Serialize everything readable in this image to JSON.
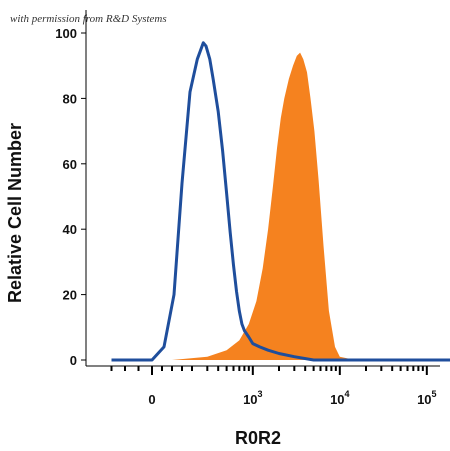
{
  "credit": "with permission from R&D Systems",
  "chart_data": {
    "type": "area",
    "title": "",
    "xlabel": "R0R2",
    "ylabel": "Relative Cell Number",
    "x_scale": "biexponential",
    "xlim": [
      -150,
      200000
    ],
    "ylim": [
      0,
      100
    ],
    "yticks": [
      "0",
      "20",
      "40",
      "60",
      "80",
      "100"
    ],
    "xticks": [
      {
        "value": 0,
        "base": "0",
        "exp": ""
      },
      {
        "value": 1000,
        "base": "10",
        "exp": "3"
      },
      {
        "value": 10000,
        "base": "10",
        "exp": "4"
      },
      {
        "value": 100000,
        "base": "10",
        "exp": "5"
      }
    ],
    "series": [
      {
        "style": "filled",
        "color": "#F5821F",
        "x": [
          -150,
          100,
          300,
          500,
          700,
          900,
          1100,
          1300,
          1500,
          1700,
          1900,
          2100,
          2300,
          2600,
          2900,
          3200,
          3500,
          3800,
          4200,
          4600,
          5100,
          5700,
          6500,
          7500,
          8800,
          10000,
          15000,
          200000
        ],
        "y": [
          0,
          0,
          1,
          3,
          6,
          11,
          18,
          28,
          40,
          53,
          65,
          74,
          80,
          86,
          90,
          93,
          94,
          92,
          88,
          80,
          70,
          55,
          35,
          15,
          4,
          1,
          0,
          0
        ]
      },
      {
        "style": "line",
        "color": "#1F4E9C",
        "x": [
          -150,
          0,
          60,
          110,
          150,
          190,
          230,
          270,
          290,
          320,
          350,
          400,
          450,
          500,
          550,
          600,
          650,
          700,
          750,
          800,
          900,
          1000,
          1200,
          1500,
          2000,
          3000,
          5000,
          200000
        ],
        "y": [
          0,
          0,
          4,
          20,
          54,
          82,
          92,
          97,
          96,
          92,
          86,
          76,
          64,
          51,
          39,
          29,
          21,
          15,
          11,
          9,
          7,
          5,
          4,
          3,
          2,
          1,
          0,
          0
        ]
      }
    ]
  }
}
